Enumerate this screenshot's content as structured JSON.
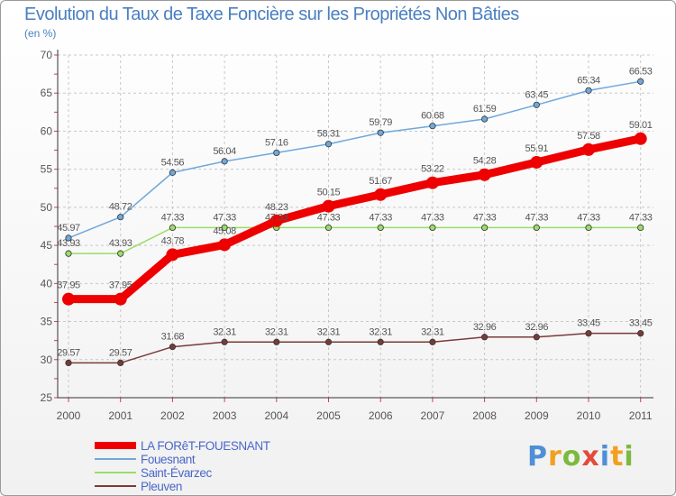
{
  "chart_data": {
    "type": "line",
    "title": "Evolution du Taux de Taxe Foncière sur les Propriétés Non Bâties",
    "subtitle": "(en %)",
    "ylim": [
      25,
      70
    ],
    "yticks": [
      25,
      30,
      35,
      40,
      45,
      50,
      55,
      60,
      65,
      70
    ],
    "categories": [
      "2000",
      "2001",
      "2002",
      "2003",
      "2004",
      "2005",
      "2006",
      "2007",
      "2008",
      "2009",
      "2010",
      "2011"
    ],
    "series": [
      {
        "name": "Fouesnant",
        "color": "#6fa8dc",
        "values": [
          45.97,
          48.72,
          54.56,
          56.04,
          57.16,
          58.31,
          59.79,
          60.68,
          61.59,
          63.45,
          65.34,
          66.53
        ],
        "labels": [
          "45.97",
          "48.72",
          "54.56",
          "56.04",
          "57.16",
          "58.31",
          "59.79",
          "60.68",
          "61.59",
          "63.45",
          "65.34",
          "66.53"
        ]
      },
      {
        "name": "Saint-Évarzec",
        "color": "#99dd66",
        "values": [
          43.93,
          43.93,
          47.33,
          47.33,
          47.33,
          47.33,
          47.33,
          47.33,
          47.33,
          47.33,
          47.33,
          47.33
        ],
        "labels": [
          "43.93",
          "43.93",
          "47.33",
          "47.33",
          "47.33",
          "47.33",
          "47.33",
          "47.33",
          "47.33",
          "47.33",
          "47.33",
          "47.33"
        ]
      },
      {
        "name": "Pleuven",
        "color": "#7a3a3a",
        "values": [
          29.57,
          29.57,
          31.68,
          32.31,
          32.31,
          32.31,
          32.31,
          32.31,
          32.96,
          32.96,
          33.45,
          33.45
        ],
        "labels": [
          "29.57",
          "29.57",
          "31.68",
          "32.31",
          "32.31",
          "32.31",
          "32.31",
          "32.31",
          "32.96",
          "32.96",
          "33.45",
          "33.45"
        ]
      },
      {
        "name": "LA FORêT-FOUESNANT",
        "color": "#ee0000",
        "values": [
          37.95,
          37.95,
          43.78,
          45.08,
          48.23,
          50.15,
          51.67,
          53.22,
          54.28,
          55.91,
          57.58,
          59.01
        ],
        "labels": [
          "37.95",
          "37.95",
          "43.78",
          "45.08",
          "48.23",
          "50.15",
          "51.67",
          "53.22",
          "54.28",
          "55.91",
          "57.58",
          "59.01"
        ]
      }
    ],
    "legend": [
      {
        "name": "LA FORêT-FOUESNANT",
        "color": "#ee0000"
      },
      {
        "name": "Fouesnant",
        "color": "#6fa8dc"
      },
      {
        "name": "Saint-Évarzec",
        "color": "#99dd66"
      },
      {
        "name": "Pleuven",
        "color": "#7a3a3a"
      }
    ]
  },
  "brand": {
    "p": "P",
    "r": "r",
    "o": "o",
    "x": "x",
    "i": "i",
    "t": "t",
    "i2": "i"
  }
}
